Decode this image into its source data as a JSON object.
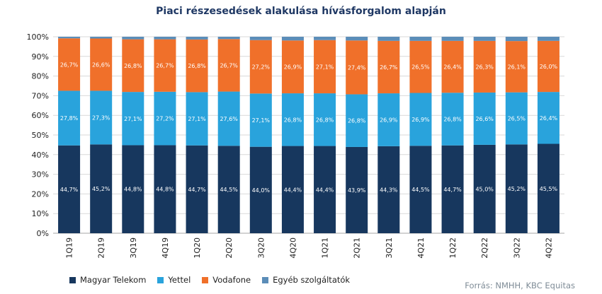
{
  "chart_data": {
    "type": "bar",
    "stacked": true,
    "title": "Piaci részesedések alakulása hívásforgalom alapján",
    "categories": [
      "1Q19",
      "2Q19",
      "3Q19",
      "4Q19",
      "1Q20",
      "2Q20",
      "3Q20",
      "4Q20",
      "1Q21",
      "2Q21",
      "3Q21",
      "4Q21",
      "1Q22",
      "2Q22",
      "3Q22",
      "4Q22"
    ],
    "series": [
      {
        "name": "Magyar Telekom",
        "color": "#17375e",
        "values": [
          44.7,
          45.2,
          44.8,
          44.8,
          44.7,
          44.5,
          44.0,
          44.4,
          44.4,
          43.9,
          44.3,
          44.5,
          44.7,
          45.0,
          45.2,
          45.5
        ],
        "labels": [
          "44,7",
          "45,2",
          "44,8",
          "44,8",
          "44,7",
          "44,5",
          "44,0",
          "44,4",
          "44,4",
          "43,9",
          "44,3",
          "44,5",
          "44,7",
          "45,0",
          "45,2",
          "45,5"
        ]
      },
      {
        "name": "Yettel",
        "color": "#29a3dc",
        "values": [
          27.8,
          27.3,
          27.1,
          27.2,
          27.1,
          27.6,
          27.1,
          26.8,
          26.8,
          26.8,
          26.9,
          26.9,
          26.8,
          26.6,
          26.5,
          26.4
        ],
        "labels": [
          "27,8",
          "27,3",
          "27,1",
          "27,2",
          "27,1",
          "27,6",
          "27,1",
          "26,8",
          "26,8",
          "26,8",
          "26,9",
          "26,9",
          "26,8",
          "26,6",
          "26,5",
          "26,4"
        ]
      },
      {
        "name": "Vodafone",
        "color": "#f0702a",
        "values": [
          26.7,
          26.6,
          26.8,
          26.7,
          26.8,
          26.7,
          27.2,
          26.9,
          27.1,
          27.4,
          26.7,
          26.5,
          26.4,
          26.3,
          26.1,
          26.0
        ],
        "labels": [
          "26,7",
          "26,6",
          "26,8",
          "26,7",
          "26,8",
          "26,7",
          "27,2",
          "26,9",
          "27,1",
          "27,4",
          "26,7",
          "26,5",
          "26,4",
          "26,3",
          "26,1",
          "26,0"
        ]
      },
      {
        "name": "Egyéb szolgáltatók",
        "color": "#5b8db8",
        "values": [
          0.8,
          0.9,
          1.3,
          1.3,
          1.4,
          1.2,
          1.7,
          1.9,
          1.7,
          1.9,
          2.1,
          2.1,
          2.1,
          2.1,
          2.2,
          2.1
        ]
      }
    ],
    "yticks": [
      "0%",
      "10%",
      "20%",
      "30%",
      "40%",
      "50%",
      "60%",
      "70%",
      "80%",
      "90%",
      "100%"
    ],
    "ylim": [
      0,
      100
    ],
    "legend_position": "bottom-left",
    "gridlines": true
  },
  "source": "Forrás: NMHH, KBC Equitas"
}
